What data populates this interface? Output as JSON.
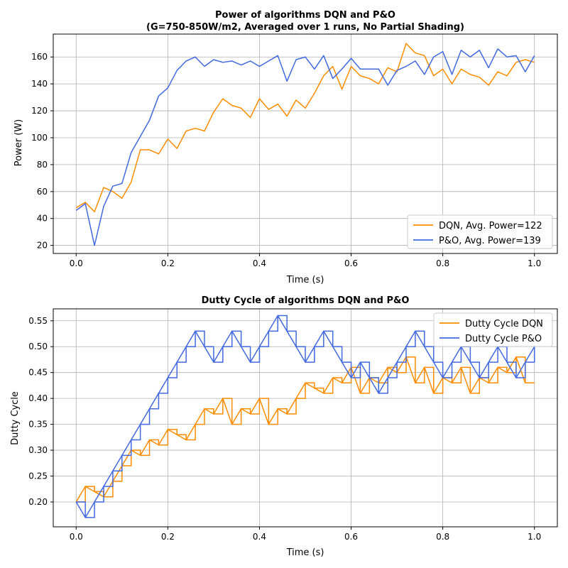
{
  "chart_data": [
    {
      "type": "line",
      "title": "Power of algorithms DQN and P&O",
      "subtitle": "(G=750-850W/m2, Averaged over 1 runs, No Partial Shading)",
      "xlabel": "Time (s)",
      "ylabel": "Power (W)",
      "xlim": [
        -0.05,
        1.05
      ],
      "ylim": [
        14,
        177
      ],
      "xticks": [
        0.0,
        0.2,
        0.4,
        0.6,
        0.8,
        1.0
      ],
      "xtick_labels": [
        "0.0",
        "0.2",
        "0.4",
        "0.6",
        "0.8",
        "1.0"
      ],
      "yticks": [
        20,
        40,
        60,
        80,
        100,
        120,
        140,
        160
      ],
      "ytick_labels": [
        "20",
        "40",
        "60",
        "80",
        "100",
        "120",
        "140",
        "160"
      ],
      "grid": true,
      "legend_position": "bottom-right",
      "x": [
        0.0,
        0.02,
        0.04,
        0.06,
        0.08,
        0.1,
        0.12,
        0.14,
        0.16,
        0.18,
        0.2,
        0.22,
        0.24,
        0.26,
        0.28,
        0.3,
        0.32,
        0.34,
        0.36,
        0.38,
        0.4,
        0.42,
        0.44,
        0.46,
        0.48,
        0.5,
        0.52,
        0.54,
        0.56,
        0.58,
        0.6,
        0.62,
        0.64,
        0.66,
        0.68,
        0.7,
        0.72,
        0.74,
        0.76,
        0.78,
        0.8,
        0.82,
        0.84,
        0.86,
        0.88,
        0.9,
        0.92,
        0.94,
        0.96,
        0.98,
        1.0
      ],
      "series": [
        {
          "name": "DQN, Avg. Power=122",
          "color": "#ff8c00",
          "values": [
            48,
            52,
            45,
            63,
            60,
            55,
            67,
            91,
            91,
            88,
            99,
            92,
            105,
            107,
            105,
            119,
            129,
            124,
            122,
            115,
            129,
            121,
            125,
            116,
            128,
            122,
            133,
            146,
            153,
            136,
            153,
            146,
            144,
            140,
            152,
            149,
            170,
            163,
            161,
            146,
            151,
            140,
            151,
            147,
            145,
            139,
            149,
            146,
            156,
            158,
            156
          ]
        },
        {
          "name": "P&O, Avg. Power=139",
          "color": "#4169e1",
          "values": [
            46,
            51,
            20,
            49,
            64,
            66,
            89,
            101,
            113,
            131,
            137,
            150,
            157,
            160,
            153,
            158,
            156,
            157,
            154,
            157,
            153,
            157,
            161,
            142,
            158,
            160,
            151,
            161,
            144,
            151,
            159,
            151,
            151,
            151,
            139,
            150,
            153,
            157,
            147,
            160,
            164,
            147,
            165,
            160,
            165,
            152,
            166,
            160,
            161,
            149,
            161
          ]
        }
      ]
    },
    {
      "type": "line",
      "title": "Dutty Cycle of algorithms DQN and P&O",
      "xlabel": "Time (s)",
      "ylabel": "Dutty Cycle",
      "xlim": [
        -0.05,
        1.05
      ],
      "ylim": [
        0.152,
        0.573
      ],
      "xticks": [
        0.0,
        0.2,
        0.4,
        0.6,
        0.8,
        1.0
      ],
      "xtick_labels": [
        "0.0",
        "0.2",
        "0.4",
        "0.6",
        "0.8",
        "1.0"
      ],
      "yticks": [
        0.2,
        0.25,
        0.3,
        0.35,
        0.4,
        0.45,
        0.5,
        0.55
      ],
      "ytick_labels": [
        "0.20",
        "0.25",
        "0.30",
        "0.35",
        "0.40",
        "0.45",
        "0.50",
        "0.55"
      ],
      "grid": true,
      "legend_position": "top-right",
      "x": [
        0.0,
        0.02,
        0.04,
        0.06,
        0.08,
        0.1,
        0.12,
        0.14,
        0.16,
        0.18,
        0.2,
        0.22,
        0.24,
        0.26,
        0.28,
        0.3,
        0.32,
        0.34,
        0.36,
        0.38,
        0.4,
        0.42,
        0.44,
        0.46,
        0.48,
        0.5,
        0.52,
        0.54,
        0.56,
        0.58,
        0.6,
        0.62,
        0.64,
        0.66,
        0.68,
        0.7,
        0.72,
        0.74,
        0.76,
        0.78,
        0.8,
        0.82,
        0.84,
        0.86,
        0.88,
        0.9,
        0.92,
        0.94,
        0.96,
        0.98,
        1.0
      ],
      "series": [
        {
          "name": "Dutty Cycle DQN",
          "color": "#ff8c00",
          "values": [
            0.2,
            0.23,
            0.22,
            0.21,
            0.24,
            0.27,
            0.3,
            0.29,
            0.32,
            0.31,
            0.34,
            0.33,
            0.32,
            0.35,
            0.38,
            0.37,
            0.4,
            0.35,
            0.38,
            0.37,
            0.4,
            0.35,
            0.38,
            0.37,
            0.4,
            0.43,
            0.42,
            0.41,
            0.44,
            0.43,
            0.46,
            0.41,
            0.44,
            0.43,
            0.46,
            0.45,
            0.48,
            0.43,
            0.46,
            0.41,
            0.44,
            0.43,
            0.46,
            0.41,
            0.44,
            0.43,
            0.46,
            0.45,
            0.48,
            0.43,
            0.43
          ]
        },
        {
          "name": "Dutty Cycle P&O",
          "color": "#4169e1",
          "values": [
            0.2,
            0.17,
            0.2,
            0.23,
            0.26,
            0.29,
            0.32,
            0.35,
            0.38,
            0.41,
            0.44,
            0.47,
            0.5,
            0.53,
            0.5,
            0.47,
            0.5,
            0.53,
            0.5,
            0.47,
            0.5,
            0.53,
            0.56,
            0.53,
            0.5,
            0.47,
            0.5,
            0.53,
            0.5,
            0.47,
            0.44,
            0.47,
            0.44,
            0.41,
            0.44,
            0.47,
            0.5,
            0.53,
            0.5,
            0.47,
            0.44,
            0.47,
            0.5,
            0.47,
            0.44,
            0.47,
            0.5,
            0.47,
            0.44,
            0.47,
            0.5
          ]
        }
      ]
    }
  ]
}
